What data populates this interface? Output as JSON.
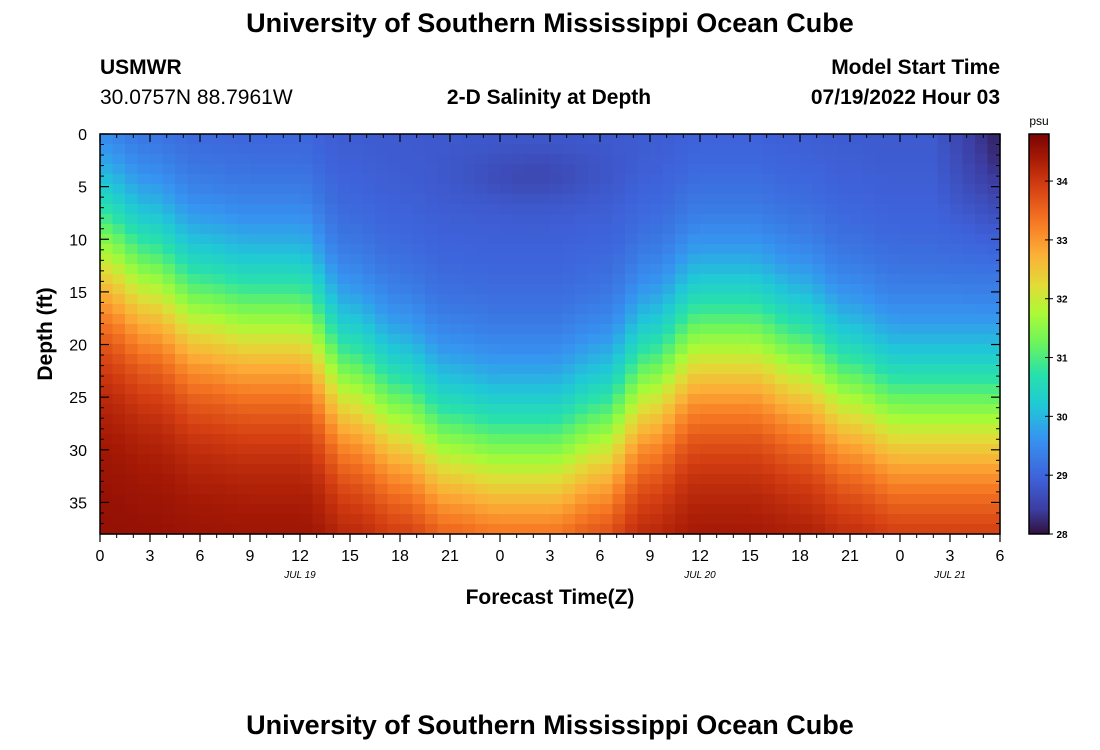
{
  "header": {
    "title": "University of Southern Mississippi Ocean Cube",
    "station_name": "USMWR",
    "station_coords": "30.0757N  88.7961W",
    "plot_title": "2-D Salinity at Depth",
    "model_label": "Model Start Time",
    "model_time": "07/19/2022 Hour 03"
  },
  "footer": {
    "title": "University of Southern Mississippi Ocean Cube"
  },
  "chart_data": {
    "type": "heatmap",
    "title": "2-D Salinity at Depth",
    "xlabel": "Forecast Time(Z)",
    "ylabel": "Depth (ft)",
    "x_hours": [
      0,
      54
    ],
    "ylim": [
      0,
      38
    ],
    "y_inverted": true,
    "x_ticks": [
      "0",
      "3",
      "6",
      "9",
      "12",
      "15",
      "18",
      "21",
      "0",
      "3",
      "6",
      "9",
      "12",
      "15",
      "18",
      "21",
      "0",
      "3",
      "6"
    ],
    "y_ticks": [
      0,
      5,
      10,
      15,
      20,
      25,
      30,
      35
    ],
    "y_tick_labels": [
      "0",
      "5",
      "10",
      "15",
      "20",
      "25",
      "30",
      "35"
    ],
    "date_labels": [
      {
        "label": "JUL 19",
        "hour": 12
      },
      {
        "label": "JUL 20",
        "hour": 36
      },
      {
        "label": "JUL 21",
        "hour": 51
      }
    ],
    "colorbar": {
      "unit": "psu",
      "range": [
        28,
        34.8
      ],
      "ticks": [
        28,
        29,
        30,
        31,
        32,
        33,
        34
      ],
      "tick_labels": [
        "28",
        "29",
        "30",
        "31",
        "32",
        "33",
        "34"
      ]
    },
    "surface_salinity_psu": 28.8,
    "bottom_salinity_psu": 34.6,
    "halocline_depth_ft": [
      {
        "hour": 0,
        "depth": 11
      },
      {
        "hour": 3,
        "depth": 14
      },
      {
        "hour": 6,
        "depth": 17
      },
      {
        "hour": 9,
        "depth": 18
      },
      {
        "hour": 12,
        "depth": 18
      },
      {
        "hour": 15,
        "depth": 24
      },
      {
        "hour": 18,
        "depth": 27
      },
      {
        "hour": 21,
        "depth": 30
      },
      {
        "hour": 24,
        "depth": 31
      },
      {
        "hour": 27,
        "depth": 31
      },
      {
        "hour": 30,
        "depth": 29
      },
      {
        "hour": 33,
        "depth": 24
      },
      {
        "hour": 36,
        "depth": 20
      },
      {
        "hour": 39,
        "depth": 20
      },
      {
        "hour": 42,
        "depth": 22
      },
      {
        "hour": 45,
        "depth": 25
      },
      {
        "hour": 48,
        "depth": 27
      },
      {
        "hour": 51,
        "depth": 27
      },
      {
        "hour": 54,
        "depth": 27
      }
    ]
  }
}
